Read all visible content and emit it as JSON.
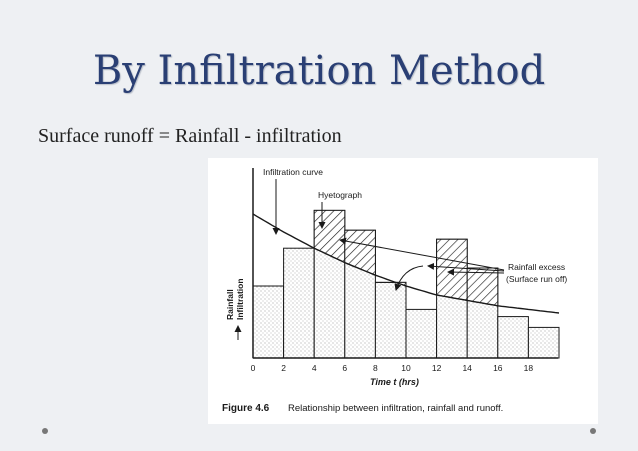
{
  "slide": {
    "title": "By Infiltration Method",
    "subtitle": "Surface runoff = Rainfall - infiltration"
  },
  "chart_data": {
    "type": "bar",
    "x_ticks": [
      "0",
      "2",
      "4",
      "6",
      "8",
      "10",
      "12",
      "14",
      "16",
      "18"
    ],
    "xlabel": "Time t (hrs)",
    "ylabel_left": "Rainfall",
    "ylabel_right": "Infiltration",
    "ylim": [
      0,
      100
    ],
    "series": [
      {
        "name": "Hyetograph",
        "x_start": [
          0,
          2,
          4,
          6,
          8,
          10,
          12,
          14,
          16,
          18
        ],
        "values": [
          40,
          61,
          82,
          71,
          42,
          27,
          66,
          50,
          23,
          17
        ]
      },
      {
        "name": "Infiltration curve",
        "x": [
          0,
          2,
          4,
          6,
          8,
          10,
          12,
          14,
          16,
          18,
          20
        ],
        "values": [
          80,
          70,
          61,
          53,
          46,
          40,
          35,
          32,
          29,
          27,
          25
        ]
      }
    ],
    "annotations": [
      "Infiltration curve",
      "Hyetograph",
      "Rainfall excess",
      "(Surface run off)"
    ],
    "caption_label": "Figure 4.6",
    "caption_text": "Relationship between infiltration, rainfall and runoff.",
    "colors": {
      "bars": "#ffffff",
      "stipple": "#8a8a8a",
      "excess_hatch": "#222222",
      "outline": "#1a1a1a"
    }
  }
}
